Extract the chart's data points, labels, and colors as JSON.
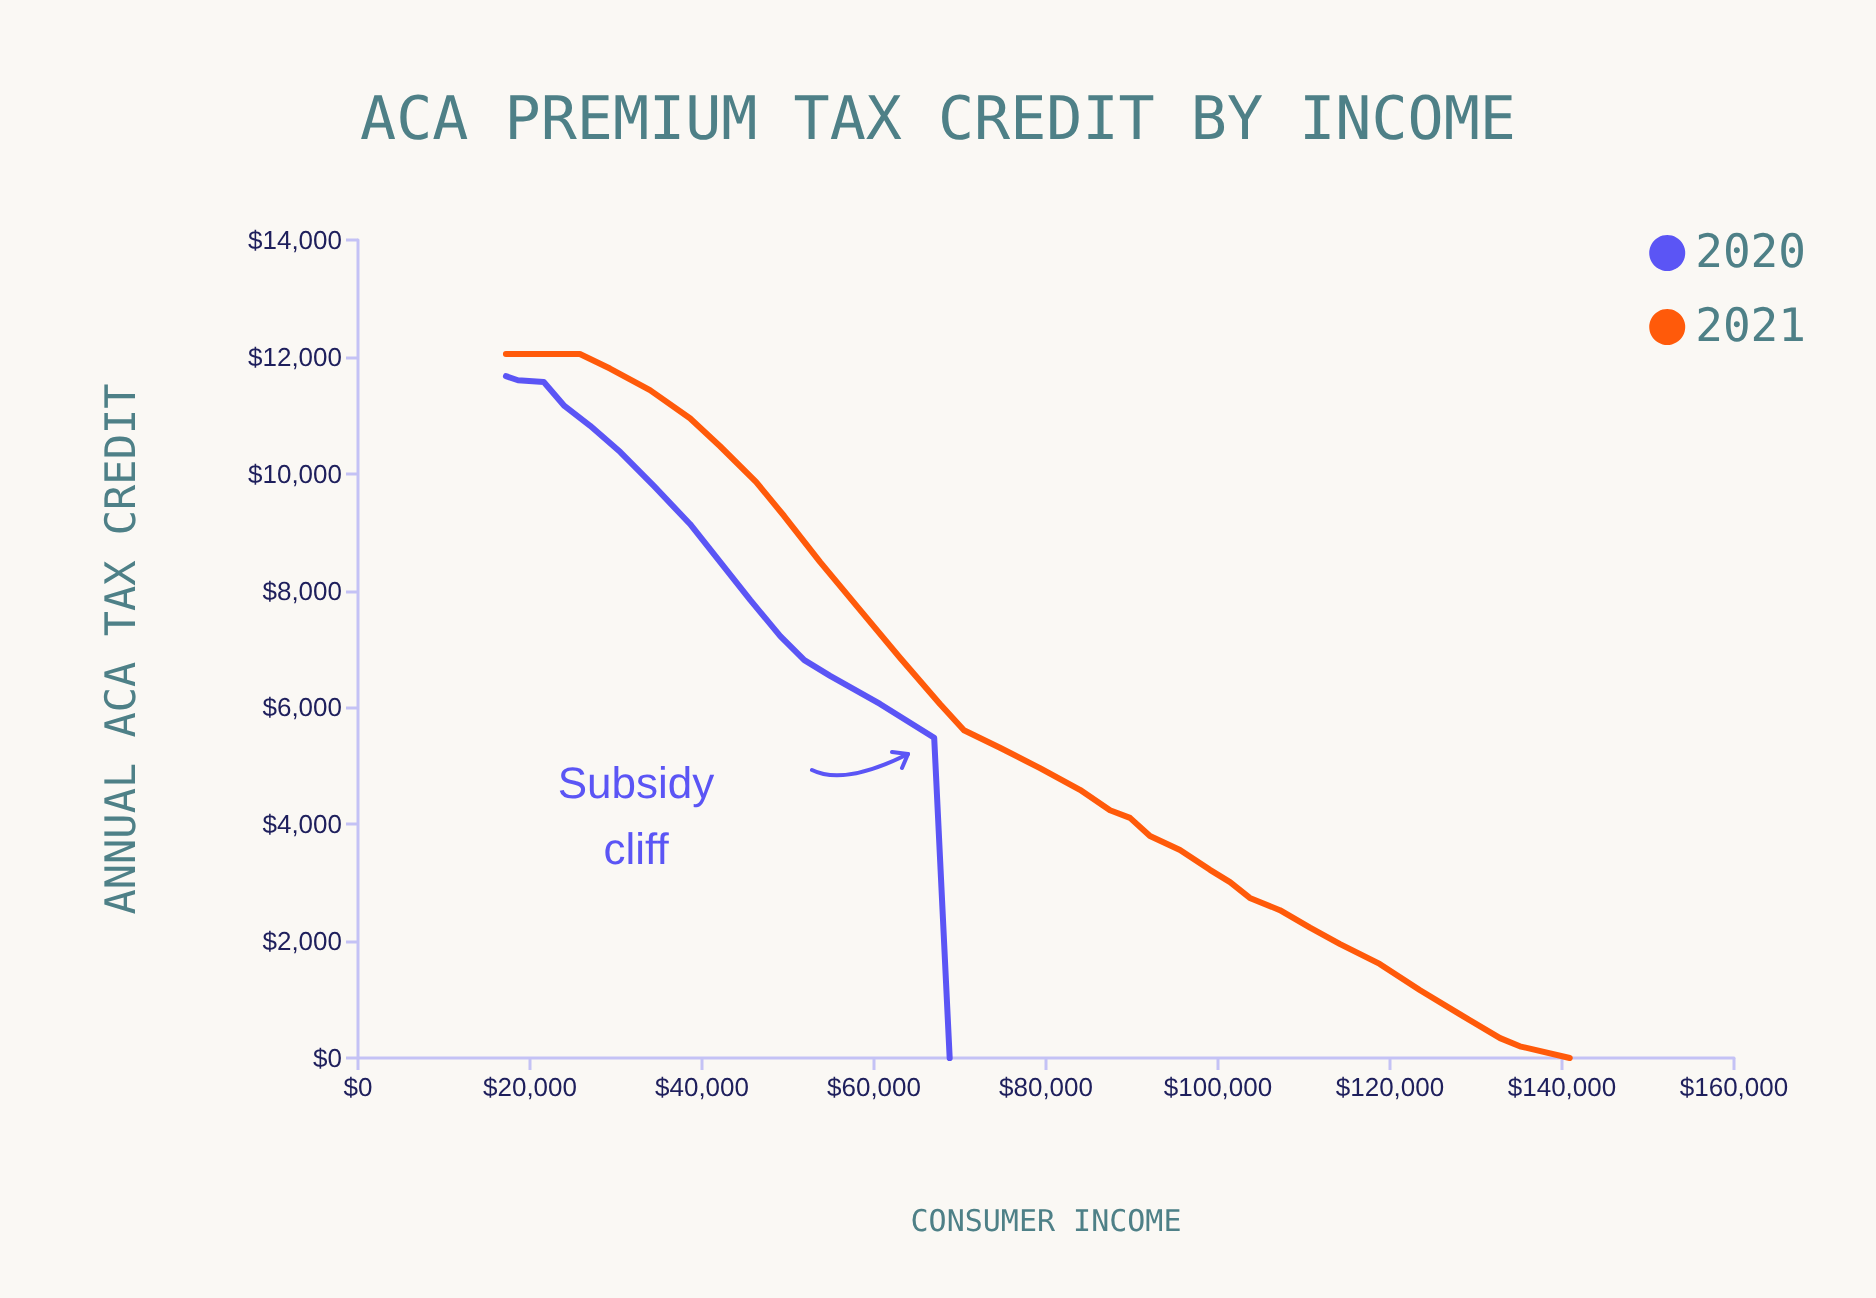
{
  "chart_data": {
    "type": "line",
    "title": "ACA PREMIUM TAX CREDIT BY INCOME",
    "xlabel": "CONSUMER INCOME",
    "ylabel": "ANNUAL ACA TAX CREDIT",
    "xlim": [
      0,
      160000
    ],
    "xticks": [
      {
        "value": 0,
        "label": "$0"
      },
      {
        "value": 20000,
        "label": "$20,000"
      },
      {
        "value": 40000,
        "label": "$40,000"
      },
      {
        "value": 60000,
        "label": "$60,000"
      },
      {
        "value": 80000,
        "label": "$80,000"
      },
      {
        "value": 100000,
        "label": "$100,000"
      },
      {
        "value": 120000,
        "label": "$120,000"
      },
      {
        "value": 140000,
        "label": "$140,000"
      },
      {
        "value": 160000,
        "label": "$160,000"
      }
    ],
    "ylim": [
      0,
      14000
    ],
    "yticks": [
      {
        "value": 0,
        "label": "$0"
      },
      {
        "value": 2000,
        "label": "$2,000"
      },
      {
        "value": 4000,
        "label": "$4,000"
      },
      {
        "value": 6000,
        "label": "$6,000"
      },
      {
        "value": 8000,
        "label": "$8,000"
      },
      {
        "value": 10000,
        "label": "$10,000"
      },
      {
        "value": 12000,
        "label": "$12,000"
      },
      {
        "value": 14000,
        "label": "$14,000"
      }
    ],
    "grid": false,
    "legend": "top right",
    "marker": "none",
    "line_style": "solid",
    "annotations": [
      "Subsidy\ncliff"
    ],
    "series": [
      {
        "name": "2020",
        "color": "#5b55f5",
        "x": [
          17200,
          18600,
          21600,
          24000,
          27000,
          30500,
          34400,
          38600,
          42100,
          45600,
          49100,
          51900,
          54900,
          60700,
          67000,
          68800
        ],
        "values": [
          11670,
          11600,
          11570,
          11160,
          10820,
          10370,
          9790,
          9140,
          8490,
          7840,
          7220,
          6810,
          6540,
          6060,
          5480,
          0
        ]
      },
      {
        "name": "2021",
        "color": "#ff5a0a",
        "x": [
          17200,
          25800,
          29300,
          33950,
          38600,
          42100,
          46280,
          49530,
          53720,
          58370,
          63020,
          67670,
          70460,
          74650,
          79300,
          83950,
          87440,
          89770,
          92090,
          95580,
          99070,
          101400,
          103700,
          107200,
          110700,
          114200,
          118800,
          123500,
          128100,
          132800,
          135100,
          140900
        ],
        "values": [
          12050,
          12050,
          11800,
          11430,
          10950,
          10470,
          9860,
          9280,
          8490,
          7670,
          6850,
          6060,
          5610,
          5310,
          4960,
          4590,
          4240,
          4110,
          3800,
          3560,
          3220,
          3010,
          2740,
          2530,
          2230,
          1950,
          1610,
          1160,
          750,
          340,
          200,
          0
        ]
      }
    ]
  }
}
